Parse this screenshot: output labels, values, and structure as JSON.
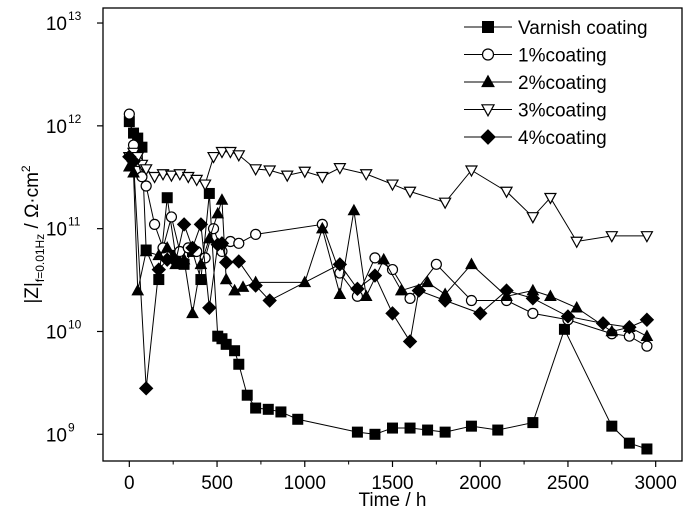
{
  "chart_data": {
    "type": "line",
    "xlabel": "Time / h",
    "ylabel_parts": {
      "main": "|Z|",
      "sub": "f=0.01Hz",
      "unit": " / Ω·cm",
      "unit_exp": "2"
    },
    "x_scale": "linear",
    "y_scale": "log",
    "xlim": [
      -150,
      3150
    ],
    "ylim": [
      550000000,
      14000000000000
    ],
    "x_ticks": [
      0,
      500,
      1000,
      1500,
      2000,
      2500,
      3000
    ],
    "x_tick_labels": [
      "0",
      "500",
      "1000",
      "1500",
      "2000",
      "2500",
      "3000"
    ],
    "y_ticks": [
      1000000000,
      10000000000,
      100000000000,
      1000000000000,
      10000000000000
    ],
    "y_tick_labels": [
      {
        "base": "10",
        "exp": "9"
      },
      {
        "base": "10",
        "exp": "10"
      },
      {
        "base": "10",
        "exp": "11"
      },
      {
        "base": "10",
        "exp": "12"
      },
      {
        "base": "10",
        "exp": "13"
      }
    ],
    "grid": false,
    "legend_position": "top-right",
    "series": [
      {
        "name": "Varnish coating",
        "marker": "square",
        "x": [
          0,
          24,
          48,
          72,
          96,
          168,
          216,
          264,
          312,
          360,
          408,
          456,
          504,
          528,
          552,
          600,
          624,
          672,
          720,
          792,
          864,
          960,
          1300,
          1400,
          1500,
          1600,
          1700,
          1800,
          1950,
          2100,
          2300,
          2480,
          2750,
          2850,
          2950
        ],
        "y": [
          1100000000000,
          850000000000,
          760000000000,
          620000000000,
          62000000000,
          32000000000,
          200000000000,
          55000000000,
          45000000000,
          60000000000,
          32000000000,
          220000000000,
          9000000000,
          8500000000,
          7500000000,
          6500000000,
          4800000000,
          2400000000,
          1800000000,
          1750000000,
          1650000000,
          1400000000,
          1050000000,
          1000000000,
          1150000000,
          1150000000,
          1100000000,
          1050000000,
          1200000000,
          1100000000,
          1300000000,
          10500000000,
          1200000000,
          820000000,
          720000000
        ]
      },
      {
        "name": "1%coating",
        "marker": "circle-open",
        "x": [
          0,
          24,
          48,
          72,
          96,
          144,
          192,
          240,
          288,
          336,
          384,
          432,
          480,
          528,
          576,
          624,
          720,
          1100,
          1200,
          1300,
          1400,
          1500,
          1600,
          1750,
          1950,
          2150,
          2300,
          2500,
          2750,
          2850,
          2950
        ],
        "y": [
          1300000000000,
          650000000000,
          450000000000,
          320000000000,
          260000000000,
          110000000000,
          65000000000,
          130000000000,
          60000000000,
          65000000000,
          60000000000,
          52000000000,
          100000000000,
          60000000000,
          75000000000,
          72000000000,
          88000000000,
          110000000000,
          37000000000,
          22000000000,
          52000000000,
          40000000000,
          21000000000,
          45000000000,
          20000000000,
          20000000000,
          15000000000,
          13000000000,
          9500000000,
          9000000000,
          7200000000
        ]
      },
      {
        "name": "2%coating",
        "marker": "triangle-up-filled",
        "x": [
          0,
          24,
          48,
          96,
          168,
          216,
          264,
          312,
          360,
          408,
          456,
          504,
          528,
          552,
          600,
          648,
          720,
          1000,
          1100,
          1200,
          1280,
          1350,
          1450,
          1550,
          1700,
          1800,
          1950,
          2150,
          2300,
          2400,
          2550,
          2750,
          2850,
          2950
        ],
        "y": [
          400000000000,
          350000000000,
          25000000000,
          60000000000,
          55000000000,
          65000000000,
          45000000000,
          50000000000,
          15000000000,
          45000000000,
          80000000000,
          140000000000,
          190000000000,
          32000000000,
          25000000000,
          27000000000,
          30000000000,
          30000000000,
          100000000000,
          23000000000,
          150000000000,
          22000000000,
          50000000000,
          25000000000,
          30000000000,
          23000000000,
          45000000000,
          22000000000,
          25000000000,
          22000000000,
          17000000000,
          10000000000,
          11000000000,
          9000000000
        ]
      },
      {
        "name": "3%coating",
        "marker": "triangle-down-open",
        "x": [
          0,
          24,
          48,
          72,
          96,
          144,
          192,
          240,
          288,
          336,
          384,
          432,
          480,
          528,
          576,
          624,
          720,
          800,
          900,
          1000,
          1100,
          1200,
          1350,
          1500,
          1600,
          1800,
          1950,
          2150,
          2300,
          2400,
          2550,
          2750,
          2950
        ],
        "y": [
          500000000000,
          550000000000,
          500000000000,
          420000000000,
          380000000000,
          320000000000,
          340000000000,
          330000000000,
          340000000000,
          320000000000,
          300000000000,
          270000000000,
          500000000000,
          560000000000,
          560000000000,
          520000000000,
          380000000000,
          370000000000,
          330000000000,
          360000000000,
          320000000000,
          390000000000,
          340000000000,
          270000000000,
          230000000000,
          180000000000,
          370000000000,
          230000000000,
          130000000000,
          200000000000,
          75000000000,
          85000000000,
          85000000000
        ]
      },
      {
        "name": "4%coating",
        "marker": "diamond-filled",
        "x": [
          0,
          24,
          96,
          168,
          216,
          264,
          312,
          360,
          408,
          456,
          504,
          528,
          552,
          624,
          720,
          800,
          1200,
          1300,
          1400,
          1500,
          1600,
          1650,
          1800,
          2000,
          2150,
          2300,
          2500,
          2700,
          2850,
          2950
        ],
        "y": [
          500000000000,
          450000000000,
          2800000000,
          40000000000,
          50000000000,
          48000000000,
          110000000000,
          65000000000,
          110000000000,
          17000000000,
          70000000000,
          72000000000,
          47000000000,
          48000000000,
          28000000000,
          20000000000,
          45000000000,
          26000000000,
          35000000000,
          15000000000,
          8000000000,
          25000000000,
          20000000000,
          15000000000,
          25000000000,
          21000000000,
          14000000000,
          12000000000,
          11000000000,
          13000000000
        ]
      }
    ]
  }
}
